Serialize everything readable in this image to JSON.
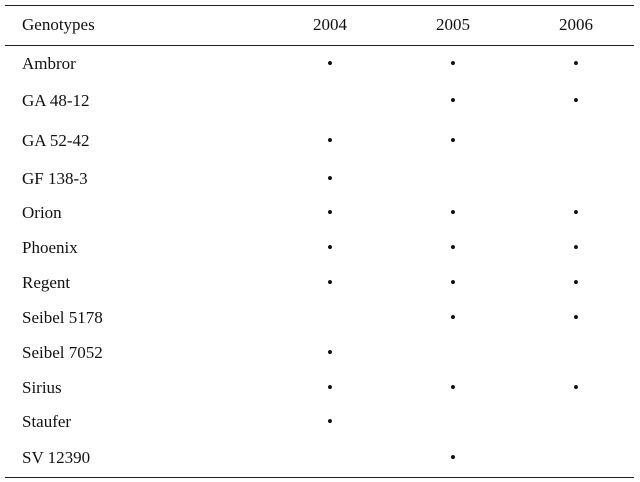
{
  "table": {
    "header": [
      "Genotypes",
      "2004",
      "2005",
      "2006"
    ],
    "rows": [
      [
        "Ambror",
        "•",
        "•",
        "•"
      ],
      [
        "GA 48-12",
        null,
        "•",
        "•"
      ],
      [
        "GA 52-42",
        "•",
        "•",
        null
      ],
      [
        "GF 138-3",
        "•",
        null,
        null
      ],
      [
        "Orion",
        "•",
        "•",
        "•"
      ],
      [
        "Phoenix",
        "•",
        "•",
        "•"
      ],
      [
        "Regent",
        "•",
        "•",
        "•"
      ],
      [
        "Seibel 5178",
        null,
        "•",
        "•"
      ],
      [
        "Seibel 7052",
        "•",
        null,
        null
      ],
      [
        "Sirius",
        "•",
        "•",
        "•"
      ],
      [
        "Staufer",
        "•",
        null,
        null
      ],
      [
        "SV 12390",
        null,
        "•",
        null
      ]
    ]
  }
}
